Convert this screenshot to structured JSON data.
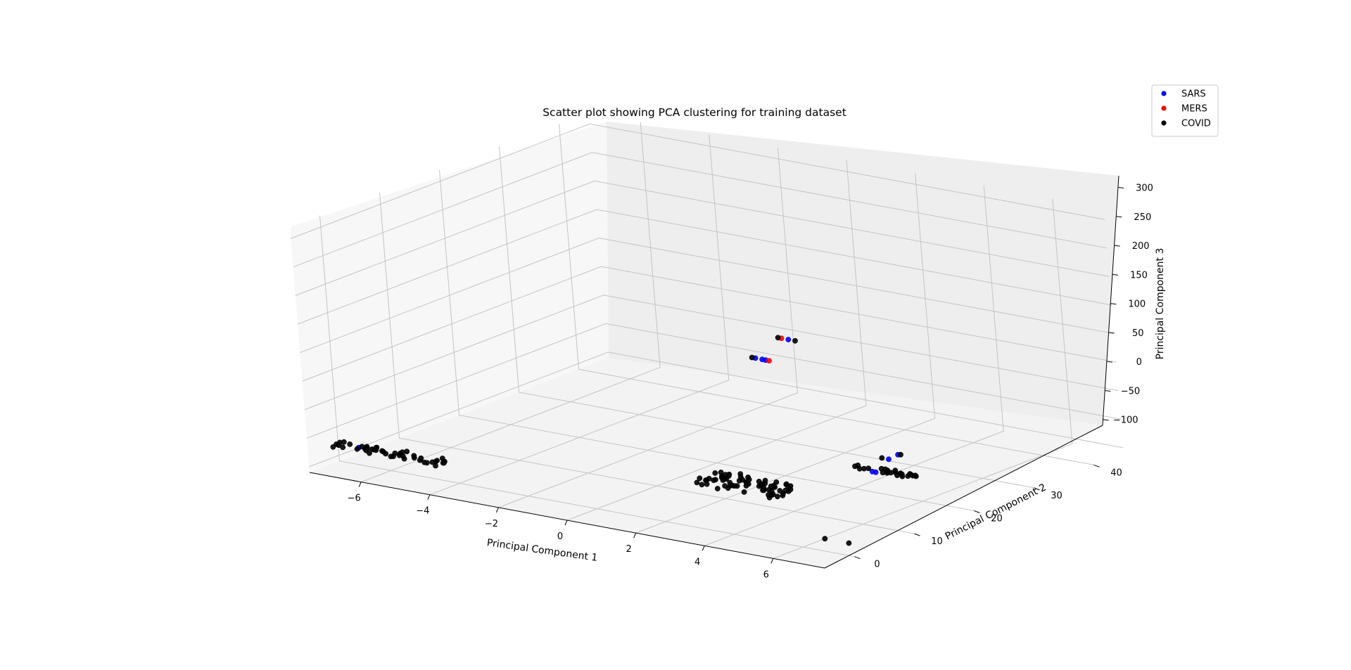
{
  "chart_data": {
    "type": "scatter",
    "title": "Scatter plot showing PCA clustering for training dataset",
    "xlabel": "Principal Component 1",
    "ylabel": "Principal Component 2",
    "zlabel": "Principal Component 3",
    "xlim": [
      -7.5,
      7.5
    ],
    "ylim": [
      -5,
      45
    ],
    "zlim": [
      -110,
      320
    ],
    "xticks": [
      "-6",
      "-4",
      "-2",
      "0",
      "2",
      "4",
      "6"
    ],
    "yticks": [
      "0",
      "10",
      "20",
      "30",
      "40"
    ],
    "zticks": [
      "-100",
      "-50",
      "0",
      "50",
      "100",
      "150",
      "200",
      "250",
      "300"
    ],
    "legend_position": "top-right",
    "grid": true,
    "projection": "3d",
    "series": [
      {
        "name": "SARS",
        "color": "#0000ff",
        "points": [
          [
            -6.9,
            0,
            -80
          ],
          [
            -6.9,
            0,
            -80
          ],
          [
            4.4,
            21,
            -80
          ],
          [
            4.5,
            21,
            -80
          ],
          [
            -2.8,
            43,
            -50
          ],
          [
            -2.6,
            43,
            -50
          ],
          [
            -2.5,
            43,
            -50
          ],
          [
            7.1,
            9,
            20
          ],
          [
            7.2,
            10,
            25
          ],
          [
            -1.6,
            42,
            0
          ]
        ]
      },
      {
        "name": "MERS",
        "color": "#ff0000",
        "points": [
          [
            -2.4,
            43,
            -50
          ],
          [
            -1.8,
            42,
            0
          ]
        ]
      },
      {
        "name": "COVID",
        "color": "#000000",
        "clusters": [
          {
            "x": [
              -7.6,
              -4.2
            ],
            "y": [
              -1,
              1
            ],
            "z": [
              -85,
              -75
            ],
            "n": 45
          },
          {
            "x": [
              1.0,
              3.5
            ],
            "y": [
              10,
              14
            ],
            "z": [
              -95,
              -85
            ],
            "n": 70
          },
          {
            "x": [
              3.8,
              5.6
            ],
            "y": [
              21,
              22
            ],
            "z": [
              -80,
              -75
            ],
            "n": 25
          }
        ],
        "points": [
          [
            6.3,
            2,
            -100
          ],
          [
            7.0,
            2,
            -100
          ],
          [
            -2.9,
            43,
            -50
          ],
          [
            6.9,
            9,
            20
          ],
          [
            7.1,
            11,
            20
          ],
          [
            -1.9,
            42,
            0
          ],
          [
            -1.4,
            42,
            0
          ]
        ]
      }
    ]
  }
}
